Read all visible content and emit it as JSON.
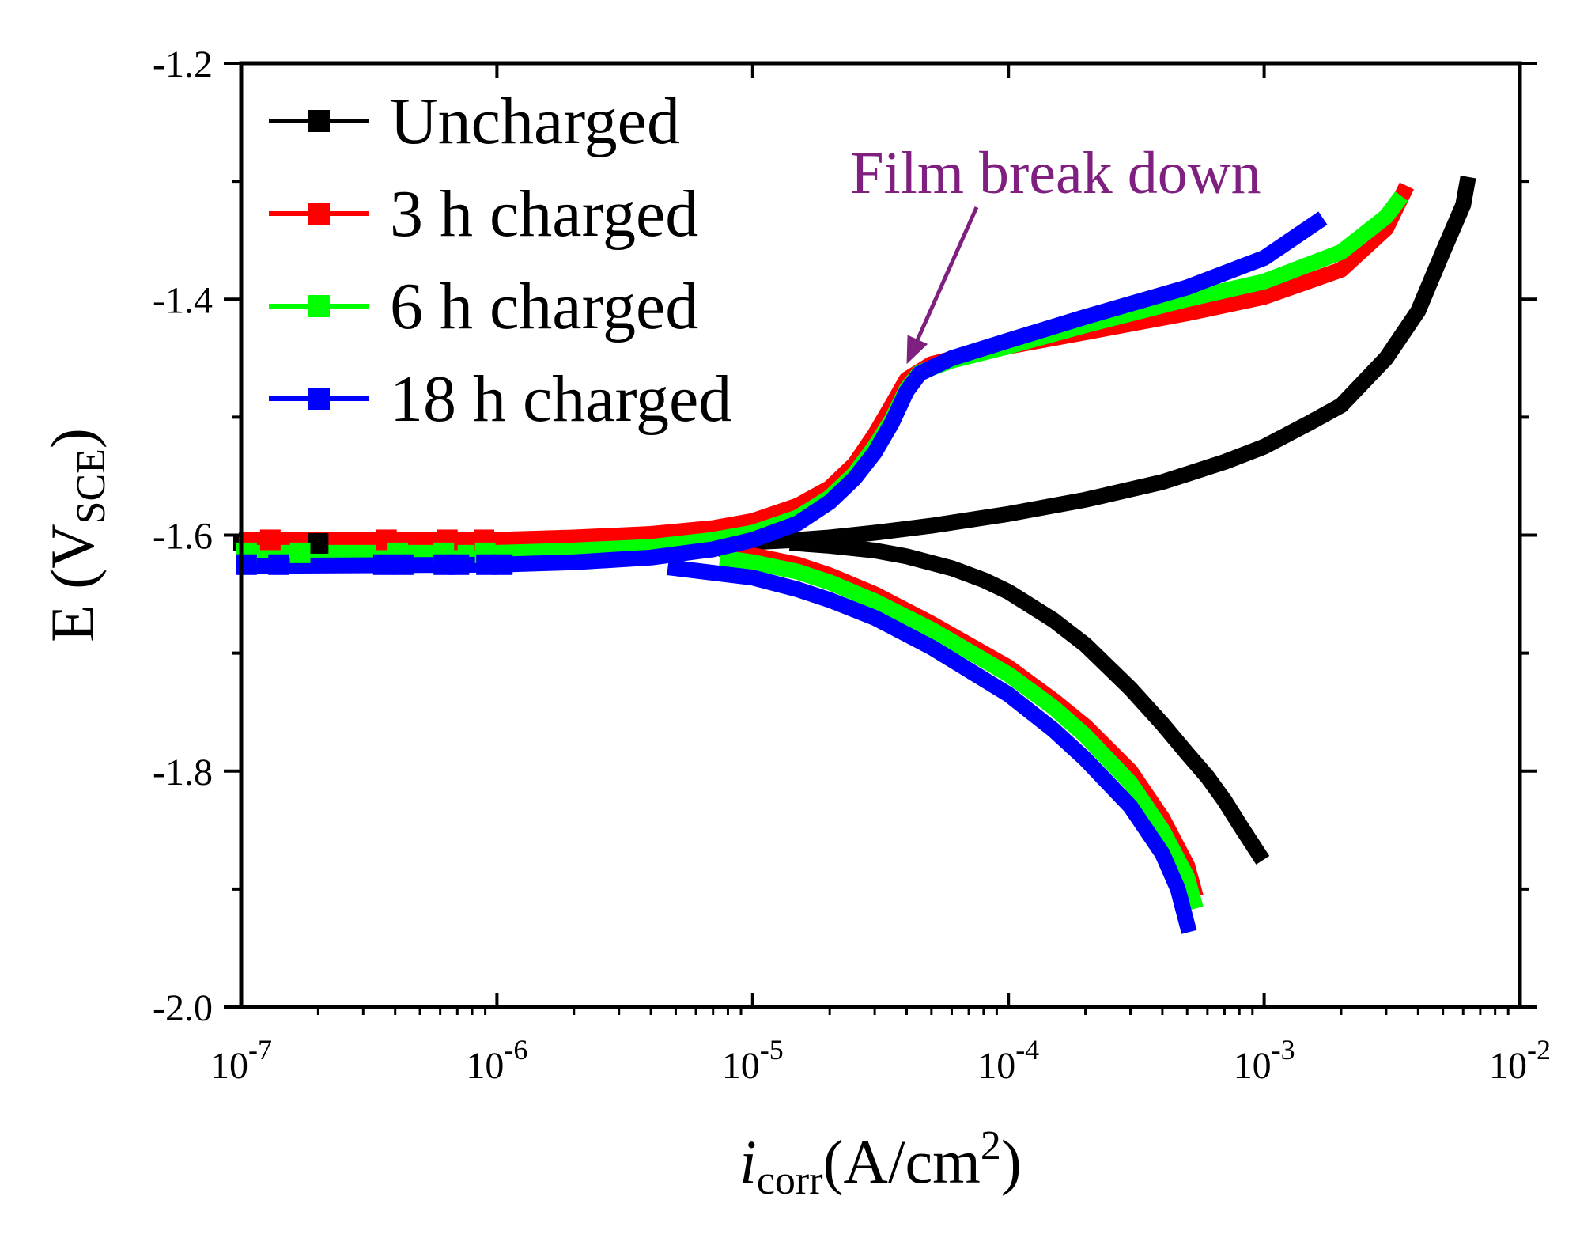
{
  "chart_data": {
    "type": "line",
    "title": "",
    "xscale": "log",
    "xlim_exp": [
      -7,
      -2
    ],
    "ylim": [
      -2.0,
      -1.2
    ],
    "x_ticks": [
      {
        "base": "10",
        "exp": "-7"
      },
      {
        "base": "10",
        "exp": "-6"
      },
      {
        "base": "10",
        "exp": "-5"
      },
      {
        "base": "10",
        "exp": "-4"
      },
      {
        "base": "10",
        "exp": "-3"
      },
      {
        "base": "10",
        "exp": "-2"
      }
    ],
    "y_ticks": [
      {
        "value": -1.2,
        "label": "-1.2"
      },
      {
        "value": -1.4,
        "label": "-1.4"
      },
      {
        "value": -1.6,
        "label": "-1.6"
      },
      {
        "value": -1.8,
        "label": "-1.8"
      },
      {
        "value": -2.0,
        "label": "-2.0"
      }
    ],
    "xlabel": {
      "italic": "i",
      "sub": "corr",
      "main": "(A/cm",
      "sup": "2",
      "close": ")"
    },
    "ylabel": {
      "main": "E (V",
      "sub": "SCE",
      "close": ")"
    },
    "annotation": {
      "text": "Film break down",
      "color": "#7f1f7f",
      "point_x": 4e-05,
      "point_y": -1.455
    },
    "series": [
      {
        "name": "Uncharged",
        "color": "#000000",
        "ecorr": -1.607,
        "marker_x": [
          2e-07
        ],
        "branches": [
          [
            [
              1e-07,
              -1.607
            ],
            [
              1e-06,
              -1.607
            ],
            [
              5e-06,
              -1.607
            ],
            [
              1e-05,
              -1.606
            ],
            [
              1.5e-05,
              -1.604
            ],
            [
              2e-05,
              -1.602
            ],
            [
              3e-05,
              -1.598
            ],
            [
              5e-05,
              -1.592
            ],
            [
              0.0001,
              -1.582
            ],
            [
              0.0002,
              -1.57
            ],
            [
              0.0004,
              -1.555
            ],
            [
              0.0007,
              -1.538
            ],
            [
              0.001,
              -1.525
            ],
            [
              0.0015,
              -1.505
            ],
            [
              0.002,
              -1.49
            ],
            [
              0.003,
              -1.45
            ],
            [
              0.004,
              -1.41
            ],
            [
              0.005,
              -1.36
            ],
            [
              0.006,
              -1.32
            ],
            [
              0.0062,
              -1.303
            ]
          ],
          [
            [
              1.5e-05,
              -1.607
            ],
            [
              2e-05,
              -1.609
            ],
            [
              3e-05,
              -1.613
            ],
            [
              4e-05,
              -1.618
            ],
            [
              6e-05,
              -1.628
            ],
            [
              8e-05,
              -1.638
            ],
            [
              0.0001,
              -1.648
            ],
            [
              0.00015,
              -1.672
            ],
            [
              0.0002,
              -1.693
            ],
            [
              0.0003,
              -1.73
            ],
            [
              0.0004,
              -1.76
            ],
            [
              0.0005,
              -1.785
            ],
            [
              0.0006,
              -1.805
            ],
            [
              0.0007,
              -1.825
            ],
            [
              0.0008,
              -1.845
            ],
            [
              0.00095,
              -1.87
            ]
          ]
        ]
      },
      {
        "name": "3 h charged",
        "color": "#ff0000",
        "ecorr": -1.604,
        "marker_x": [
          1.3e-07,
          3.7e-07,
          6.4e-07,
          8.9e-07
        ],
        "branches": [
          [
            [
              1.05e-07,
              -1.604
            ],
            [
              1e-06,
              -1.604
            ],
            [
              2e-06,
              -1.602
            ],
            [
              4e-06,
              -1.599
            ],
            [
              7e-06,
              -1.594
            ],
            [
              1e-05,
              -1.588
            ],
            [
              1.5e-05,
              -1.575
            ],
            [
              2e-05,
              -1.56
            ],
            [
              2.5e-05,
              -1.54
            ],
            [
              3e-05,
              -1.515
            ],
            [
              3.5e-05,
              -1.49
            ],
            [
              4e-05,
              -1.468
            ],
            [
              5e-05,
              -1.455
            ],
            [
              7e-05,
              -1.447
            ],
            [
              0.0001,
              -1.44
            ],
            [
              0.0002,
              -1.428
            ],
            [
              0.0005,
              -1.412
            ],
            [
              0.001,
              -1.398
            ],
            [
              0.002,
              -1.375
            ],
            [
              0.003,
              -1.34
            ],
            [
              0.0035,
              -1.31
            ]
          ],
          [
            [
              8e-06,
              -1.613
            ],
            [
              1e-05,
              -1.617
            ],
            [
              1.5e-05,
              -1.625
            ],
            [
              2e-05,
              -1.634
            ],
            [
              3e-05,
              -1.65
            ],
            [
              5e-05,
              -1.675
            ],
            [
              0.0001,
              -1.712
            ],
            [
              0.00015,
              -1.74
            ],
            [
              0.0002,
              -1.762
            ],
            [
              0.0003,
              -1.8
            ],
            [
              0.0004,
              -1.84
            ],
            [
              0.0005,
              -1.88
            ],
            [
              0.00053,
              -1.9
            ]
          ]
        ]
      },
      {
        "name": "6 h charged",
        "color": "#00ff00",
        "ecorr": -1.615,
        "marker_x": [
          1.05e-07,
          1.7e-07,
          4.1e-07,
          6.2e-07,
          9e-07
        ],
        "branches": [
          [
            [
              1.05e-07,
              -1.615
            ],
            [
              1e-06,
              -1.615
            ],
            [
              2e-06,
              -1.613
            ],
            [
              4e-06,
              -1.61
            ],
            [
              7e-06,
              -1.604
            ],
            [
              1e-05,
              -1.598
            ],
            [
              1.5e-05,
              -1.585
            ],
            [
              2e-05,
              -1.568
            ],
            [
              2.5e-05,
              -1.548
            ],
            [
              3e-05,
              -1.525
            ],
            [
              3.5e-05,
              -1.502
            ],
            [
              4e-05,
              -1.476
            ],
            [
              4.5e-05,
              -1.462
            ],
            [
              6e-05,
              -1.452
            ],
            [
              0.0001,
              -1.44
            ],
            [
              0.0002,
              -1.422
            ],
            [
              0.0005,
              -1.4
            ],
            [
              0.001,
              -1.385
            ],
            [
              0.002,
              -1.36
            ],
            [
              0.003,
              -1.33
            ],
            [
              0.0033,
              -1.318
            ]
          ],
          [
            [
              8e-06,
              -1.62
            ],
            [
              1e-05,
              -1.623
            ],
            [
              1.5e-05,
              -1.631
            ],
            [
              2e-05,
              -1.64
            ],
            [
              3e-05,
              -1.656
            ],
            [
              5e-05,
              -1.68
            ],
            [
              0.0001,
              -1.718
            ],
            [
              0.00015,
              -1.746
            ],
            [
              0.0002,
              -1.77
            ],
            [
              0.0003,
              -1.81
            ],
            [
              0.0004,
              -1.85
            ],
            [
              0.0005,
              -1.89
            ],
            [
              0.00053,
              -1.91
            ]
          ]
        ]
      },
      {
        "name": "18 h charged",
        "color": "#0000ff",
        "ecorr": -1.625,
        "marker_x": [
          1.05e-07,
          1.4e-07,
          3.6e-07,
          4.3e-07,
          6.2e-07,
          7.1e-07,
          9.1e-07,
          1.05e-06
        ],
        "branches": [
          [
            [
              1.05e-07,
              -1.626
            ],
            [
              1e-06,
              -1.625
            ],
            [
              2e-06,
              -1.623
            ],
            [
              4e-06,
              -1.619
            ],
            [
              7e-06,
              -1.612
            ],
            [
              1e-05,
              -1.604
            ],
            [
              1.5e-05,
              -1.59
            ],
            [
              2e-05,
              -1.572
            ],
            [
              2.5e-05,
              -1.552
            ],
            [
              3e-05,
              -1.53
            ],
            [
              3.5e-05,
              -1.505
            ],
            [
              4e-05,
              -1.478
            ],
            [
              4.5e-05,
              -1.463
            ],
            [
              6e-05,
              -1.45
            ],
            [
              0.0001,
              -1.435
            ],
            [
              0.0002,
              -1.415
            ],
            [
              0.0005,
              -1.39
            ],
            [
              0.001,
              -1.365
            ],
            [
              0.0016,
              -1.335
            ]
          ],
          [
            [
              5e-06,
              -1.628
            ],
            [
              1e-05,
              -1.636
            ],
            [
              1.5e-05,
              -1.646
            ],
            [
              2e-05,
              -1.655
            ],
            [
              3e-05,
              -1.67
            ],
            [
              5e-05,
              -1.695
            ],
            [
              0.0001,
              -1.735
            ],
            [
              0.00015,
              -1.765
            ],
            [
              0.0002,
              -1.79
            ],
            [
              0.0003,
              -1.83
            ],
            [
              0.0004,
              -1.87
            ],
            [
              0.00046,
              -1.9
            ],
            [
              0.0005,
              -1.93
            ]
          ]
        ]
      }
    ]
  }
}
